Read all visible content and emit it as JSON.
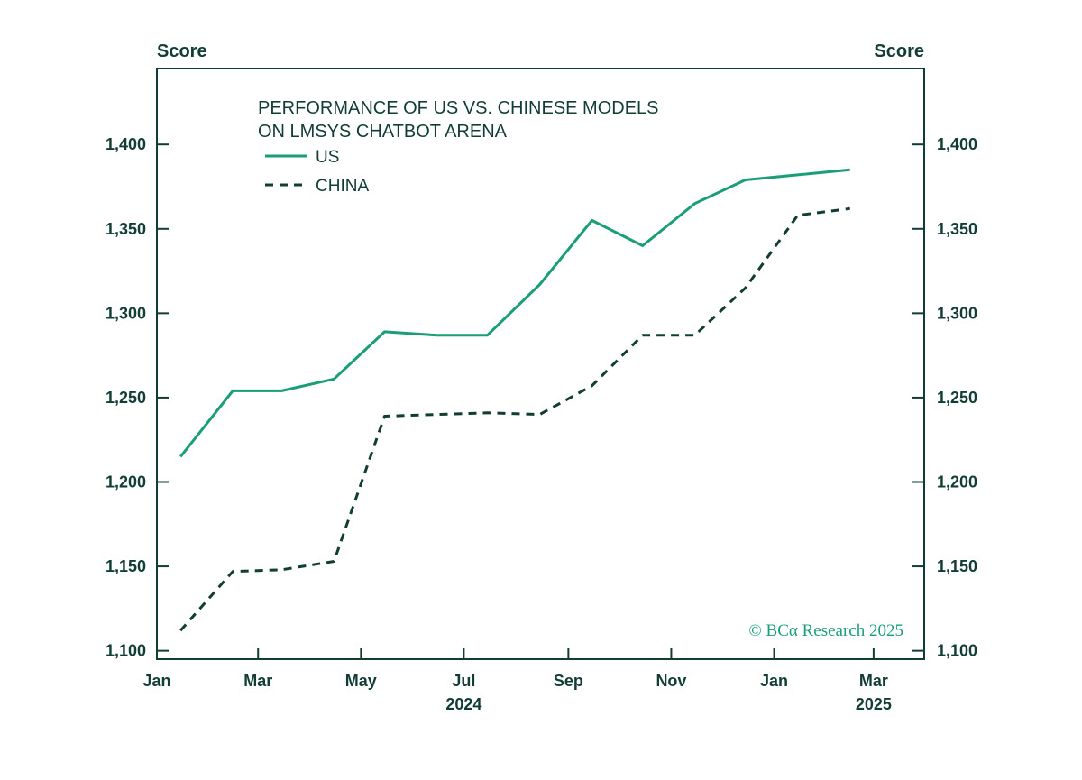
{
  "chart_data": {
    "type": "line",
    "title_lines": [
      "PERFORMANCE OF US VS. CHINESE MODELS",
      "ON LMSYS CHATBOT ARENA"
    ],
    "ylabel_left": "Score",
    "ylabel_right": "Score",
    "ylim": [
      1095,
      1445
    ],
    "yticks": [
      1100,
      1150,
      1200,
      1250,
      1300,
      1350,
      1400
    ],
    "ytick_labels": [
      "1,100",
      "1,150",
      "1,200",
      "1,250",
      "1,300",
      "1,350",
      "1,400"
    ],
    "xlim": [
      "2024-01-01",
      "2025-03-31"
    ],
    "xticks": [
      {
        "date": "2024-01-01",
        "label": "Jan"
      },
      {
        "date": "2024-03-01",
        "label": "Mar"
      },
      {
        "date": "2024-05-01",
        "label": "May"
      },
      {
        "date": "2024-07-01",
        "label": "Jul"
      },
      {
        "date": "2024-09-01",
        "label": "Sep"
      },
      {
        "date": "2024-11-01",
        "label": "Nov"
      },
      {
        "date": "2025-01-01",
        "label": "Jan"
      },
      {
        "date": "2025-03-01",
        "label": "Mar"
      }
    ],
    "year_labels": [
      {
        "date": "2024-07-01",
        "label": "2024"
      },
      {
        "date": "2025-03-01",
        "label": "2025"
      }
    ],
    "grid": false,
    "legend_position": "top-left",
    "series": [
      {
        "name": "US",
        "style": "solid",
        "color": "#1a9e78",
        "points": [
          {
            "x": "2024-01-15",
            "y": 1215
          },
          {
            "x": "2024-02-15",
            "y": 1254
          },
          {
            "x": "2024-03-15",
            "y": 1254
          },
          {
            "x": "2024-04-15",
            "y": 1261
          },
          {
            "x": "2024-05-15",
            "y": 1289
          },
          {
            "x": "2024-06-15",
            "y": 1287
          },
          {
            "x": "2024-07-15",
            "y": 1287
          },
          {
            "x": "2024-08-15",
            "y": 1317
          },
          {
            "x": "2024-09-15",
            "y": 1355
          },
          {
            "x": "2024-10-15",
            "y": 1340
          },
          {
            "x": "2024-11-15",
            "y": 1365
          },
          {
            "x": "2024-12-15",
            "y": 1379
          },
          {
            "x": "2025-01-15",
            "y": 1382
          },
          {
            "x": "2025-02-15",
            "y": 1385
          }
        ]
      },
      {
        "name": "CHINA",
        "style": "dashed",
        "color": "#123d35",
        "points": [
          {
            "x": "2024-01-15",
            "y": 1112
          },
          {
            "x": "2024-02-15",
            "y": 1147
          },
          {
            "x": "2024-03-15",
            "y": 1148
          },
          {
            "x": "2024-04-15",
            "y": 1153
          },
          {
            "x": "2024-05-15",
            "y": 1239
          },
          {
            "x": "2024-06-15",
            "y": 1240
          },
          {
            "x": "2024-07-15",
            "y": 1241
          },
          {
            "x": "2024-08-15",
            "y": 1240
          },
          {
            "x": "2024-09-15",
            "y": 1257
          },
          {
            "x": "2024-10-15",
            "y": 1287
          },
          {
            "x": "2024-11-15",
            "y": 1287
          },
          {
            "x": "2024-12-15",
            "y": 1315
          },
          {
            "x": "2025-01-15",
            "y": 1358
          },
          {
            "x": "2025-02-15",
            "y": 1362
          }
        ]
      }
    ],
    "copyright": "© BCα Research 2025",
    "copyright_color": "#1a9e78",
    "axis_color": "#123d35"
  }
}
